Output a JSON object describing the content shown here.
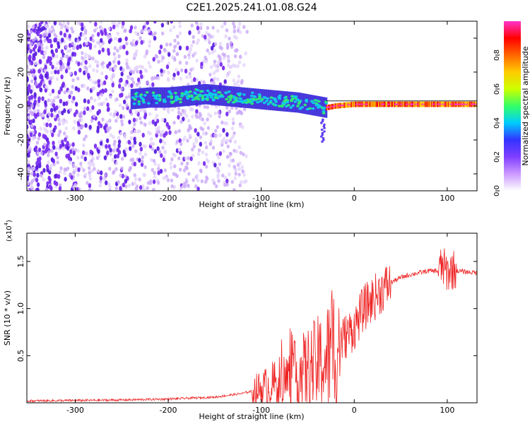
{
  "figure": {
    "title": "C2E1.2025.241.01.08.G24"
  },
  "chart_data": [
    {
      "type": "heatmap",
      "title": "C2E1.2025.241.01.08.G24",
      "xlabel": "Height of straight line (km)",
      "ylabel": "Frequency (Hz)",
      "xlim": [
        -352,
        132
      ],
      "ylim": [
        -50,
        50
      ],
      "xticks": [
        -300,
        -200,
        -100,
        0,
        100
      ],
      "yticks": [
        -40,
        -20,
        0,
        20,
        40
      ],
      "colorbar": {
        "label": "Normalized spectral amplitude",
        "range": [
          0,
          1
        ],
        "ticks": [
          0.0,
          0.2,
          0.4,
          0.6,
          0.8
        ],
        "tick_labels": [
          "0.0",
          "0.2",
          "0.4",
          "0.6",
          "0.8"
        ],
        "stops": [
          "#ffffff",
          "#cc99ff",
          "#7f3fff",
          "#3333ff",
          "#00ccff",
          "#33ff66",
          "#ccff00",
          "#ffcc00",
          "#ff6600",
          "#ff0000",
          "#ff33cc"
        ]
      },
      "signal_track": {
        "description": "frequency centerline of strong signal",
        "x": [
          -240,
          -220,
          -200,
          -180,
          -160,
          -140,
          -120,
          -100,
          -80,
          -60,
          -40,
          -30,
          -20,
          -10,
          0,
          20,
          40,
          60,
          80,
          100,
          132
        ],
        "y": [
          4,
          5,
          5,
          6,
          7,
          6,
          5,
          4,
          3,
          2,
          0,
          -1,
          0,
          0.5,
          1,
          1,
          1,
          1,
          1,
          1,
          1
        ]
      },
      "noise_region_km": [
        -352,
        -145
      ],
      "saturated_region_km": [
        -30,
        132
      ]
    },
    {
      "type": "line",
      "title": "",
      "xlabel": "Height of straight line (km)",
      "ylabel": "SNR (10 * v/v)",
      "y_multiplier_label": "(x10",
      "y_multiplier_exp": "4",
      "xlim": [
        -352,
        132
      ],
      "ylim": [
        0,
        1.8
      ],
      "xticks": [
        -300,
        -200,
        -100,
        0,
        100
      ],
      "yticks": [
        0.5,
        1.0,
        1.5
      ],
      "ytick_labels": [
        "0.5",
        "1.0",
        "1.5"
      ],
      "series": [
        {
          "name": "SNR",
          "color": "#ee2222",
          "x": [
            -352,
            -300,
            -250,
            -200,
            -150,
            -120,
            -100,
            -80,
            -60,
            -50,
            -40,
            -30,
            -20,
            -10,
            0,
            10,
            20,
            30,
            40,
            50,
            60,
            70,
            80,
            90,
            95,
            100,
            105,
            110,
            120,
            132
          ],
          "y": [
            0.02,
            0.025,
            0.03,
            0.04,
            0.06,
            0.1,
            0.15,
            0.22,
            0.3,
            0.35,
            0.4,
            0.45,
            0.6,
            0.7,
            0.8,
            1.0,
            1.1,
            1.2,
            1.28,
            1.33,
            1.36,
            1.38,
            1.4,
            1.4,
            1.45,
            1.38,
            1.42,
            1.4,
            1.39,
            1.38
          ]
        }
      ]
    }
  ]
}
